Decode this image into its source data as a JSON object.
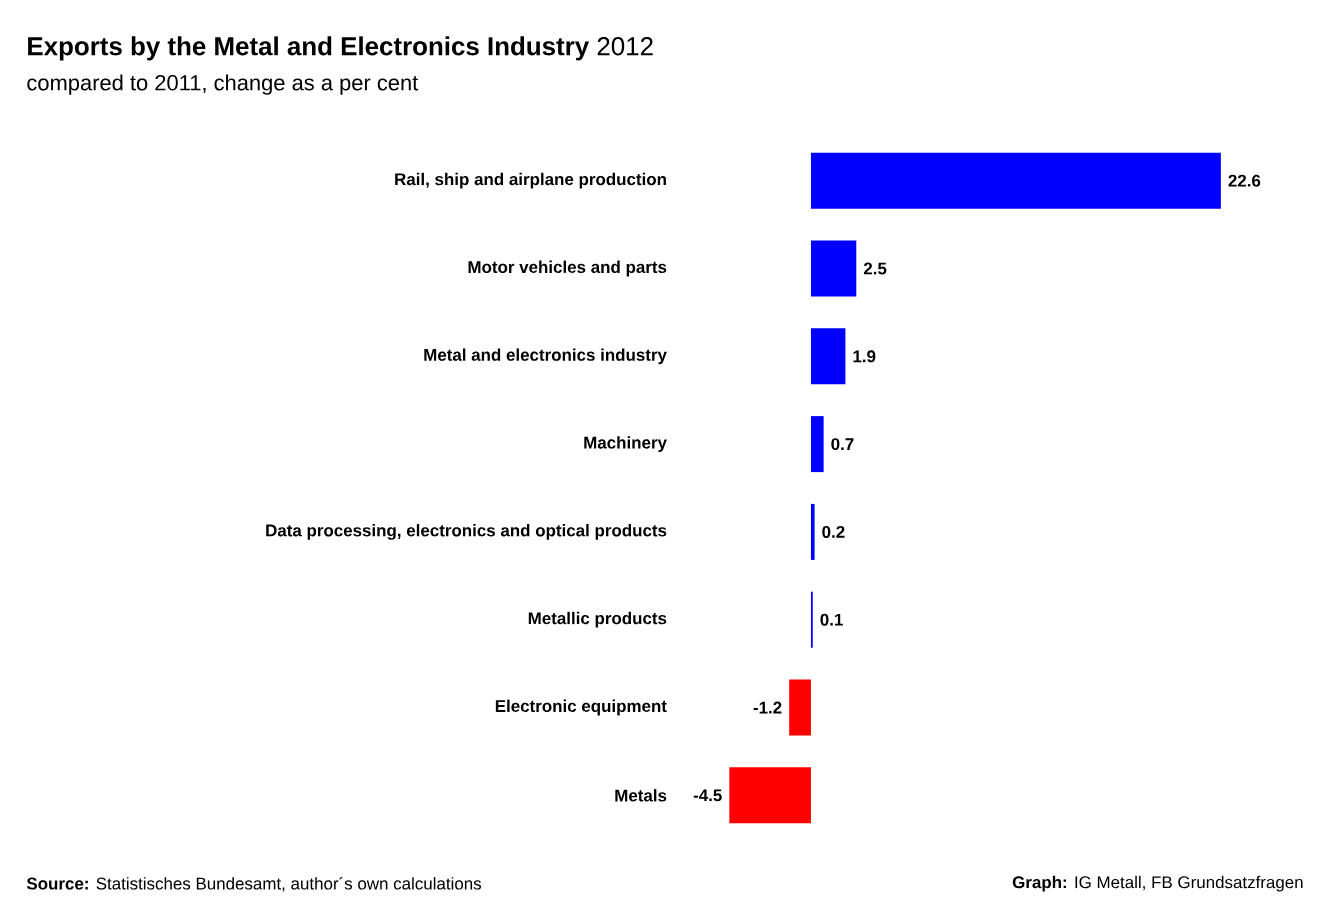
{
  "chart_data": {
    "type": "bar",
    "orientation": "horizontal",
    "title": "**Exports by the Metal and Electronics Industry** 2012",
    "subtitle": "compared to 2011, change as a per cent",
    "categories": [
      "Rail, ship and airplane production",
      "Motor vehicles and parts",
      "Metal and electronics industry",
      "Machinery",
      "Data processing, electronics and optical products",
      "Metallic products",
      "Electronic equipment",
      "Metals"
    ],
    "values": [
      22.6,
      2.5,
      1.9,
      0.7,
      0.2,
      0.1,
      -1.2,
      -4.5
    ],
    "colors": [
      "#0000ff",
      "#0000ff",
      "#0000ff",
      "#0000ff",
      "#0000ff",
      "#0000ff",
      "#ff0000",
      "#ff0000"
    ],
    "data_labels": true,
    "annotations": [
      "**Source:** Statistisches Bundesamt, author´s own calculations",
      "**Graph:** IG Metall, FB Grundsatzfragen"
    ]
  }
}
